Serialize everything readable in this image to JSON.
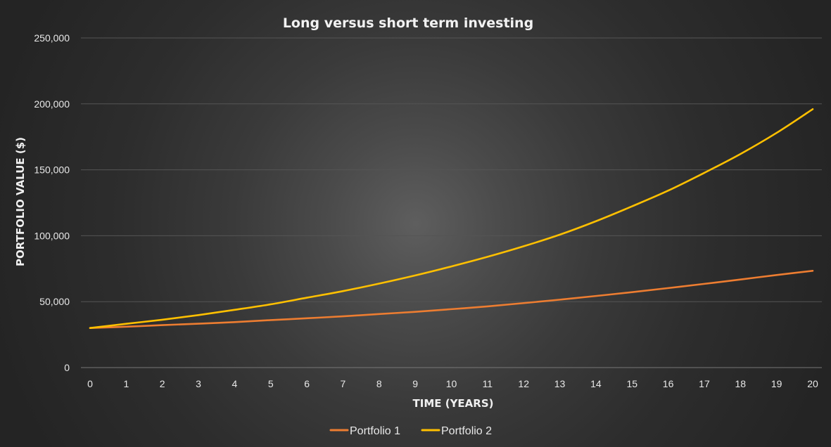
{
  "chart_data": {
    "type": "line",
    "title": "Long versus short term investing",
    "xlabel": "TIME (YEARS)",
    "ylabel": "PORTFOLIO VALUE ($)",
    "x": [
      0,
      1,
      2,
      3,
      4,
      5,
      6,
      7,
      8,
      9,
      10,
      11,
      12,
      13,
      14,
      15,
      16,
      17,
      18,
      19,
      20
    ],
    "ylim": [
      0,
      250000
    ],
    "yticks": [
      0,
      50000,
      100000,
      150000,
      200000,
      250000
    ],
    "ytick_labels": [
      "0",
      "50,000",
      "100,000",
      "150,000",
      "200,000",
      "250,000"
    ],
    "xtick_labels": [
      "0",
      "1",
      "2",
      "3",
      "4",
      "5",
      "6",
      "7",
      "8",
      "9",
      "10",
      "11",
      "12",
      "13",
      "14",
      "15",
      "16",
      "17",
      "18",
      "19",
      "20"
    ],
    "grid": true,
    "legend_position": "bottom",
    "series": [
      {
        "name": "Portfolio 1",
        "color": "#ed7d31",
        "values": [
          30000,
          31000,
          32200,
          33300,
          34500,
          36000,
          37400,
          38900,
          40600,
          42300,
          44300,
          46400,
          48900,
          51500,
          54300,
          57200,
          60300,
          63500,
          66800,
          70200,
          73400
        ]
      },
      {
        "name": "Portfolio 2",
        "color": "#ffc000",
        "values": [
          30000,
          33200,
          36300,
          39800,
          43800,
          48000,
          53000,
          58000,
          63700,
          69900,
          76700,
          84000,
          92000,
          100800,
          111000,
          122300,
          134200,
          147700,
          162000,
          178000,
          196000
        ]
      }
    ]
  }
}
